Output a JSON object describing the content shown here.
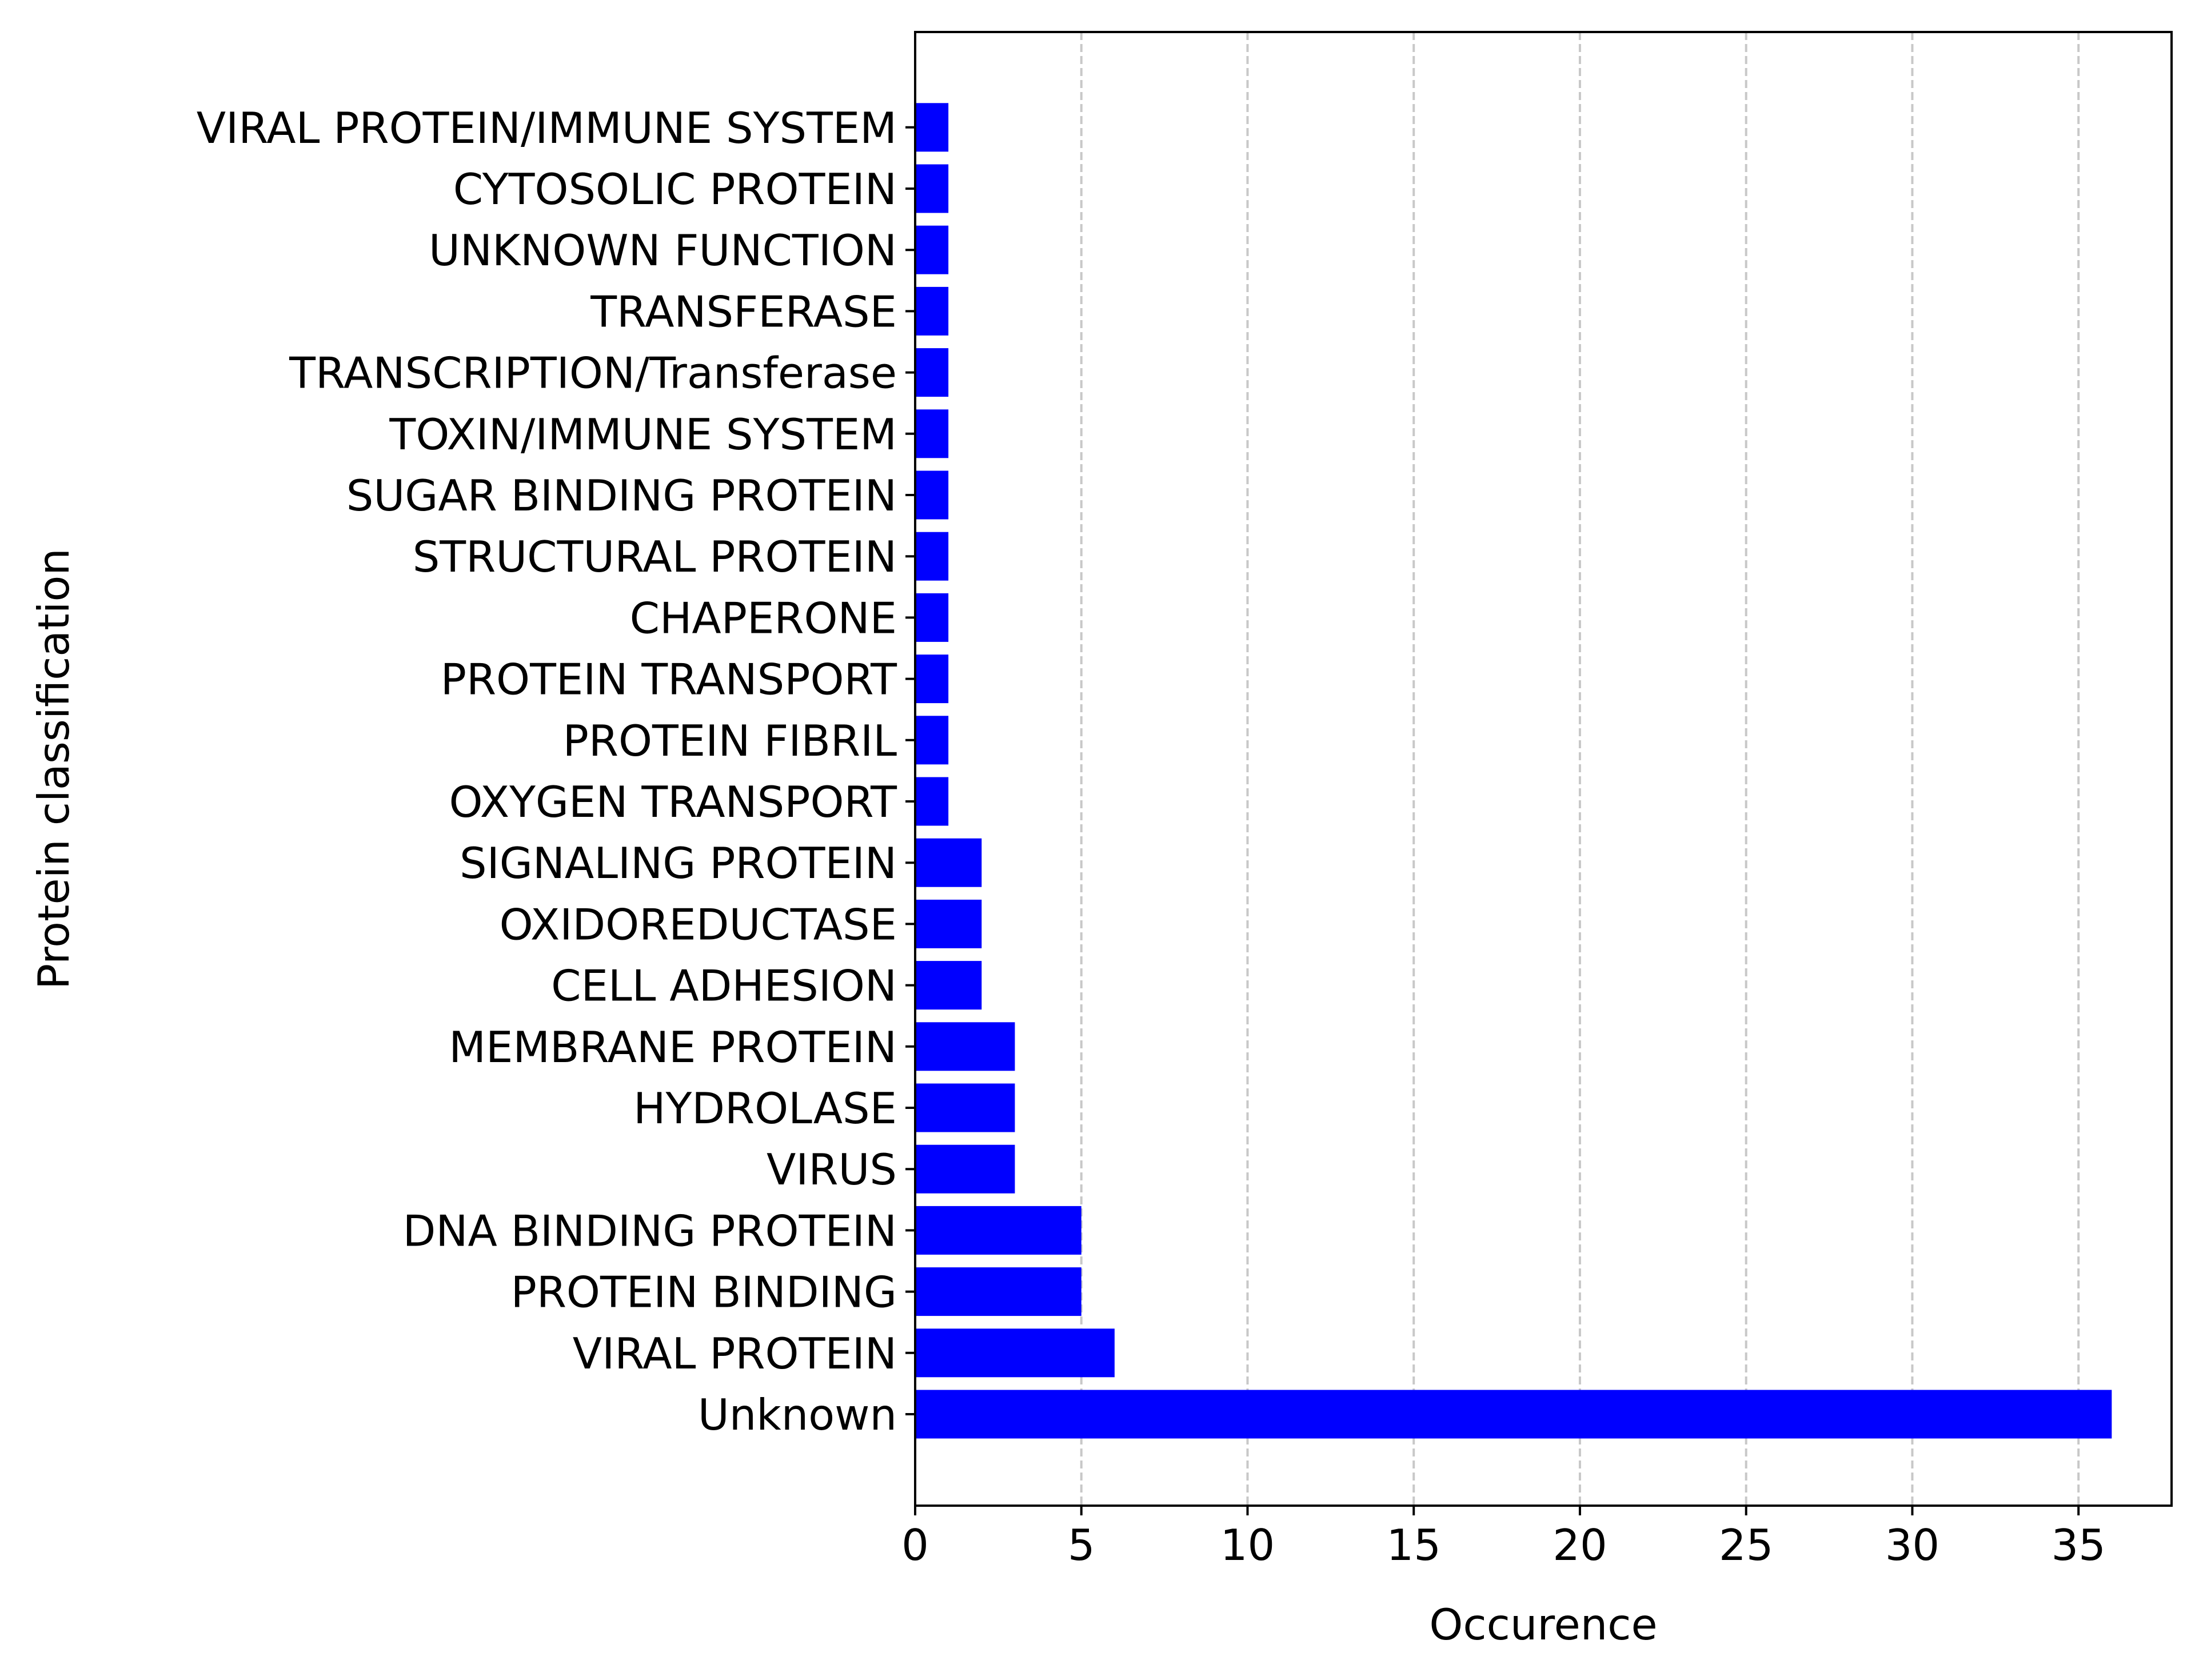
{
  "chart_data": {
    "type": "bar",
    "orientation": "horizontal",
    "categories": [
      "Unknown",
      "VIRAL PROTEIN",
      "PROTEIN BINDING",
      "DNA BINDING PROTEIN",
      "VIRUS",
      "HYDROLASE",
      "MEMBRANE PROTEIN",
      "CELL ADHESION",
      "OXIDOREDUCTASE",
      "SIGNALING PROTEIN",
      "OXYGEN TRANSPORT",
      "PROTEIN FIBRIL",
      "PROTEIN TRANSPORT",
      "CHAPERONE",
      "STRUCTURAL PROTEIN",
      "SUGAR BINDING PROTEIN",
      "TOXIN/IMMUNE SYSTEM",
      "TRANSCRIPTION/Transferase",
      "TRANSFERASE",
      "UNKNOWN FUNCTION",
      "CYTOSOLIC PROTEIN",
      "VIRAL PROTEIN/IMMUNE SYSTEM"
    ],
    "values": [
      36,
      6,
      5,
      5,
      3,
      3,
      3,
      2,
      2,
      2,
      1,
      1,
      1,
      1,
      1,
      1,
      1,
      1,
      1,
      1,
      1,
      1
    ],
    "title": "",
    "xlabel": "Occurence",
    "ylabel": "Protein classification",
    "xlim": [
      0,
      37.8
    ],
    "xticks": [
      0,
      5,
      10,
      15,
      20,
      25,
      30,
      35
    ],
    "grid": "x-dashed",
    "bar_color": "#0000ff",
    "grid_color": "#c8c8c8",
    "legend": "none"
  }
}
